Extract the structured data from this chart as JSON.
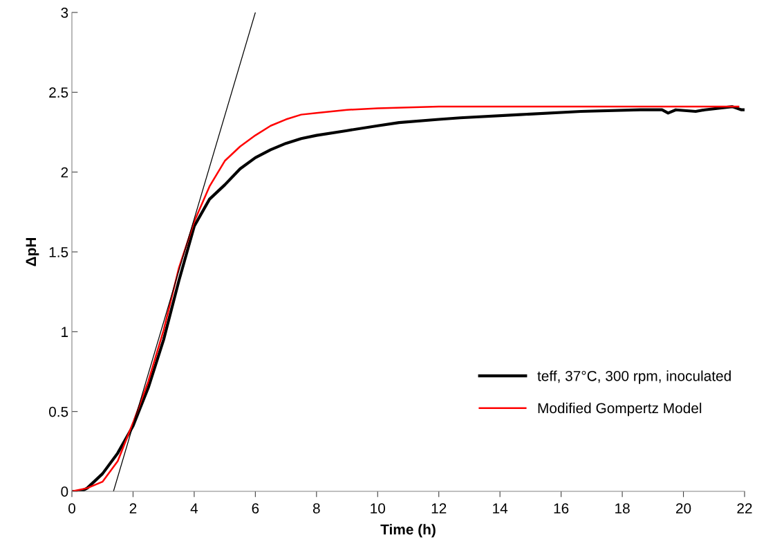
{
  "chart_data": {
    "type": "line",
    "xlabel": "Time (h)",
    "ylabel": "ΔpH",
    "xlim": [
      0,
      22
    ],
    "xticks": [
      0,
      2,
      4,
      6,
      8,
      10,
      12,
      14,
      16,
      18,
      20,
      22
    ],
    "ylim": [
      0,
      3
    ],
    "yticks": [
      0,
      0.5,
      1,
      1.5,
      2,
      2.5,
      3
    ],
    "grid": false,
    "legend": "bottom right",
    "marker": "none",
    "line_style": "solid",
    "series": [
      {
        "name": "teff, 37°C, 300 rpm, inoculated",
        "color": "#000000",
        "x": [
          0,
          0.3,
          0.5,
          1,
          1.5,
          2,
          2.5,
          3,
          3.5,
          4,
          4.5,
          5,
          5.5,
          6,
          6.5,
          7,
          7.5,
          8,
          9,
          10,
          10.7,
          12,
          12.7,
          14.65,
          16.65,
          18.6,
          19.3,
          19.5,
          19.75,
          20.4,
          20.7,
          21.6,
          21.9,
          22
        ],
        "values": [
          0,
          0,
          0.02,
          0.11,
          0.24,
          0.41,
          0.65,
          0.95,
          1.32,
          1.66,
          1.83,
          1.92,
          2.02,
          2.09,
          2.14,
          2.18,
          2.21,
          2.23,
          2.26,
          2.29,
          2.31,
          2.33,
          2.34,
          2.36,
          2.38,
          2.39,
          2.39,
          2.37,
          2.39,
          2.38,
          2.39,
          2.41,
          2.39,
          2.39
        ]
      },
      {
        "name": "Modified Gompertz Model",
        "color": "#ff0000",
        "x": [
          0,
          0.5,
          1,
          1.5,
          2,
          2.5,
          3,
          3.5,
          4,
          4.5,
          5,
          5.5,
          6,
          6.5,
          7,
          7.5,
          8,
          9,
          10,
          12,
          16,
          21.8
        ],
        "values": [
          0,
          0.02,
          0.06,
          0.19,
          0.43,
          0.69,
          1.01,
          1.4,
          1.69,
          1.91,
          2.07,
          2.16,
          2.23,
          2.29,
          2.33,
          2.36,
          2.37,
          2.39,
          2.4,
          2.41,
          2.41,
          2.41
        ]
      },
      {
        "color": "#000000",
        "x": [
          1.36,
          6.0
        ],
        "values": [
          0,
          3
        ]
      }
    ]
  }
}
